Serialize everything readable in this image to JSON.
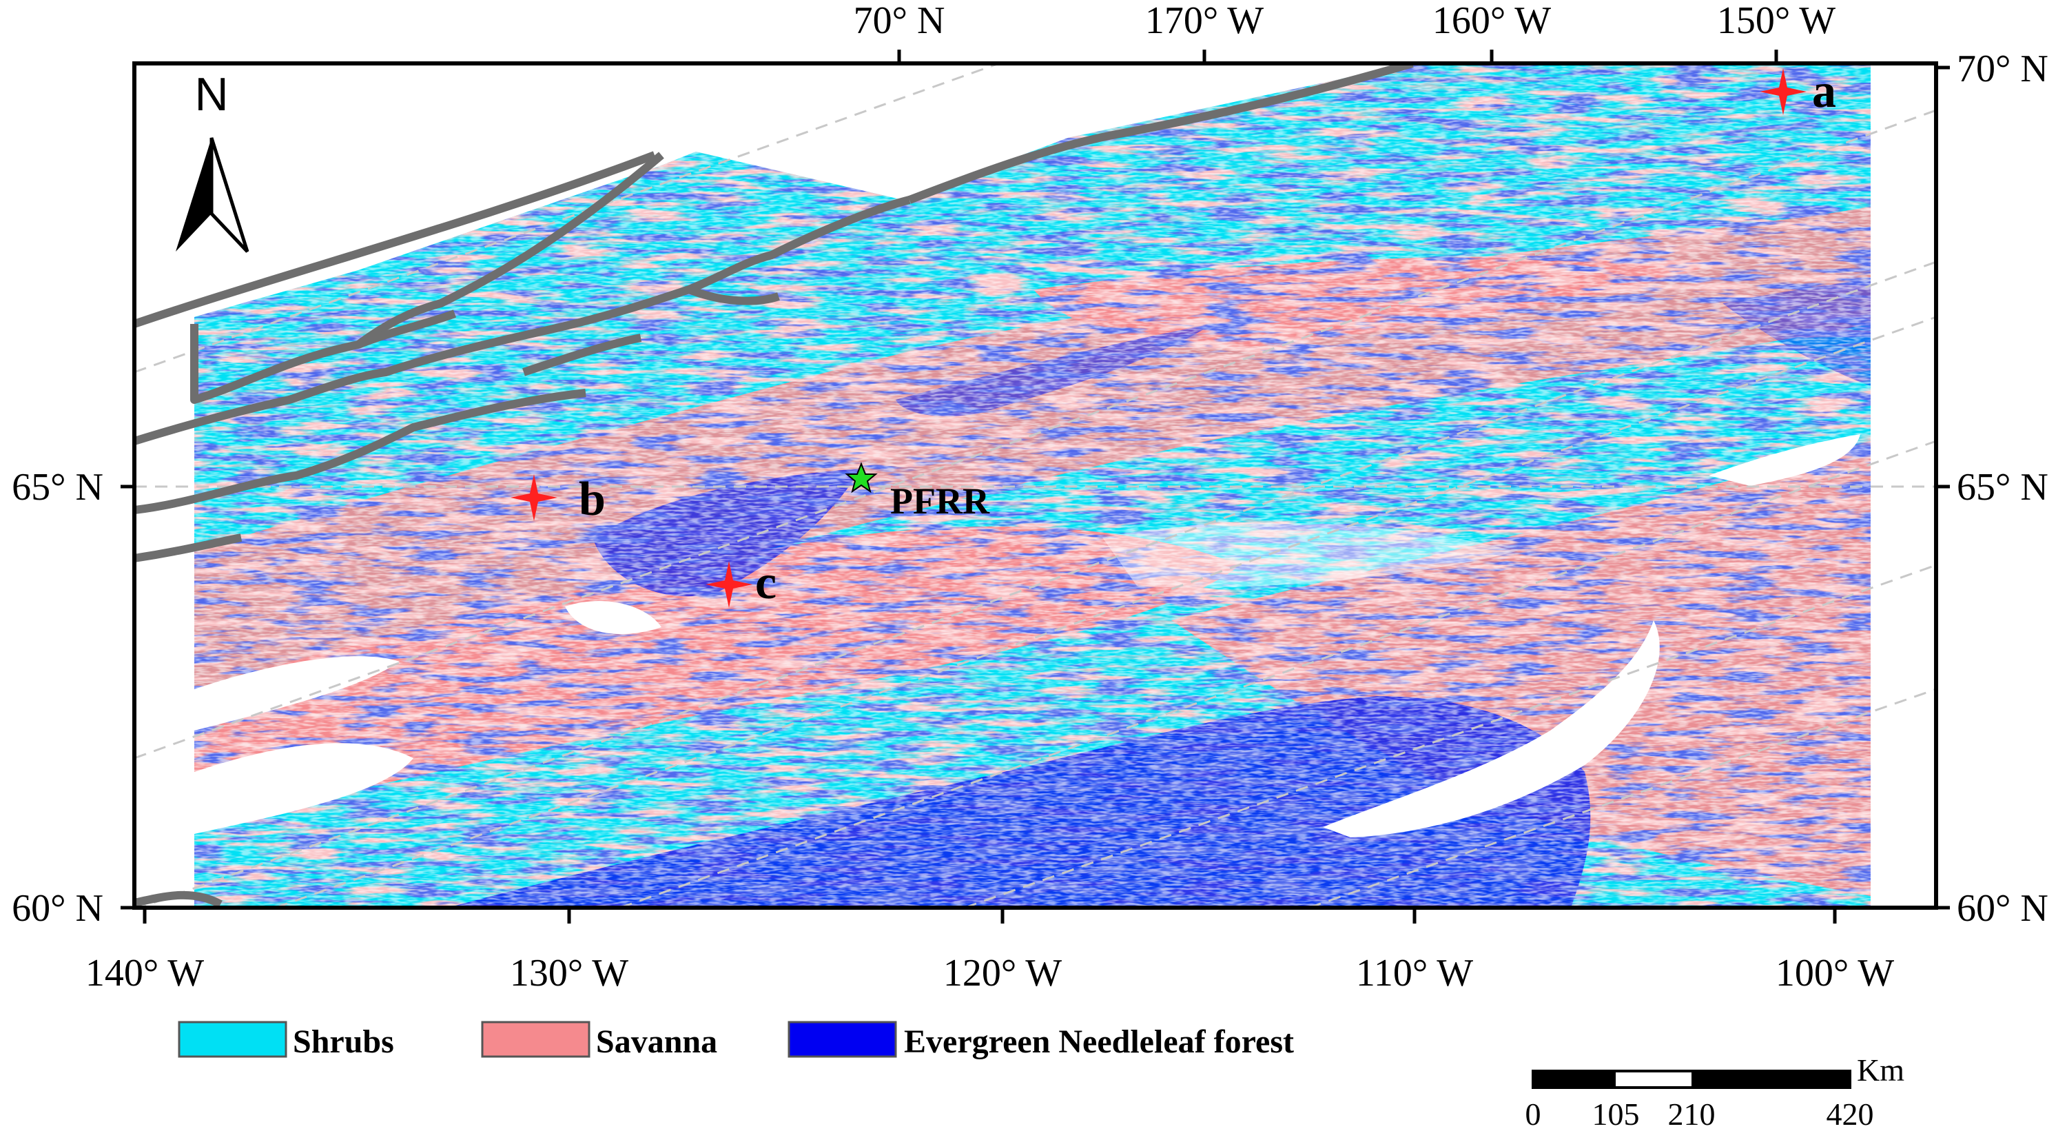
{
  "map": {
    "north_arrow": {
      "label": "N",
      "icon": "north-arrow-icon"
    },
    "axes": {
      "top_ticks": [
        "70° N",
        "170° W",
        "160° W",
        "150° W"
      ],
      "bottom_ticks": [
        "140° W",
        "130° W",
        "120° W",
        "110° W",
        "100° W"
      ],
      "left_ticks": [
        "65° N",
        "60° N"
      ],
      "right_ticks": [
        "70° N",
        "65° N",
        "60° N"
      ]
    },
    "sites": [
      {
        "label": "a",
        "marker": "red-star-icon",
        "color": "#ff2020"
      },
      {
        "label": "b",
        "marker": "red-star-icon",
        "color": "#ff2020"
      },
      {
        "label": "c",
        "marker": "red-star-icon",
        "color": "#ff2020"
      },
      {
        "label": "PFRR",
        "marker": "green-star-icon",
        "color": "#22dd22"
      }
    ],
    "colors": {
      "shrubs": "#00e0f4",
      "savanna": "#f58a8e",
      "evergreen_needleleaf_forest": "#0a1ef0",
      "background": "#ffffff",
      "coastline": "#6e6e6e",
      "graticule": "#c8c8c8"
    }
  },
  "legend": [
    {
      "label": "Shrubs",
      "color": "#00e0f4"
    },
    {
      "label": "Savanna",
      "color": "#f58a8e"
    },
    {
      "label": "Evergreen Needleleaf forest",
      "color": "#0a1ef0"
    }
  ],
  "scale_bar": {
    "unit": "Km",
    "labels": [
      "0",
      "105",
      "210",
      "420"
    ]
  }
}
